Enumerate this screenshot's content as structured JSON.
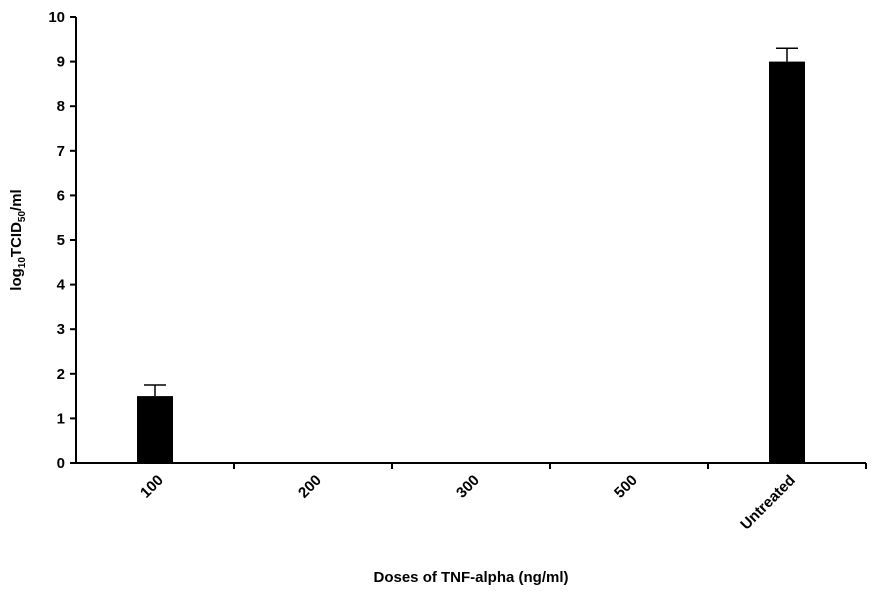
{
  "chart_data": {
    "type": "bar",
    "categories": [
      "100",
      "200",
      "300",
      "500",
      "Untreated"
    ],
    "values": [
      1.5,
      0,
      0,
      0,
      9.0
    ],
    "error_bars": [
      0.25,
      0,
      0,
      0,
      0.3
    ],
    "xlabel": "Doses of TNF-alpha (ng/ml)",
    "ylabel": {
      "prefix": "log",
      "sub1": "10",
      "middle": "TCID",
      "sub2": "50",
      "suffix": "/ml"
    },
    "ylim": [
      0,
      10
    ],
    "yticks": [
      "0",
      "1",
      "2",
      "3",
      "4",
      "5",
      "6",
      "7",
      "8",
      "9",
      "10"
    ],
    "grid": false,
    "bar_color": "#000000"
  }
}
